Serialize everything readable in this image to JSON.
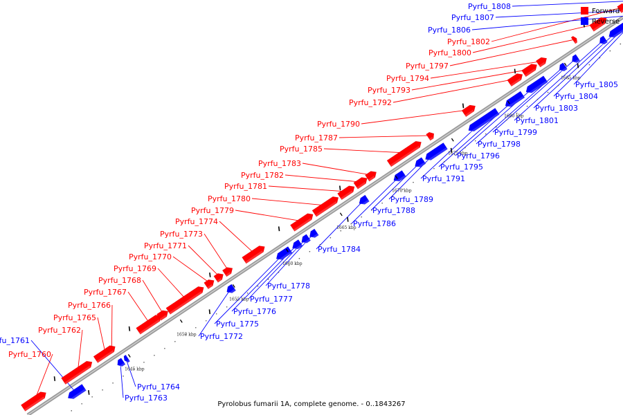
{
  "caption": "Pyrolobus fumarii 1A, complete genome. - 0..1843267",
  "legend": [
    {
      "label": "Forward",
      "color": "#ff0000"
    },
    {
      "label": "Reverse",
      "color": "#0000ff"
    }
  ],
  "colors": {
    "forward": "#ff0000",
    "reverse": "#0000ff",
    "axis": "#999999"
  },
  "ticks": [
    "1645 kbp",
    "1650 kbp",
    "1655 kbp",
    "1660 kbp",
    "1665 kbp",
    "1670 kbp",
    "1675 kbp",
    "1680 kbp",
    "1685 kbp"
  ],
  "forward_genes": [
    "Pyrfu_1760",
    "Pyrfu_1762",
    "Pyrfu_1765",
    "Pyrfu_1766",
    "Pyrfu_1767",
    "Pyrfu_1768",
    "Pyrfu_1769",
    "Pyrfu_1770",
    "Pyrfu_1771",
    "Pyrfu_1773",
    "Pyrfu_1774",
    "Pyrfu_1779",
    "Pyrfu_1780",
    "Pyrfu_1781",
    "Pyrfu_1782",
    "Pyrfu_1783",
    "Pyrfu_1785",
    "Pyrfu_1787",
    "Pyrfu_1790",
    "Pyrfu_1792",
    "Pyrfu_1793",
    "Pyrfu_1794",
    "Pyrfu_1797",
    "Pyrfu_1800",
    "Pyrfu_1802"
  ],
  "reverse_genes": [
    "Pyrfu_1761",
    "Pyrfu_1763",
    "Pyrfu_1764",
    "Pyrfu_1772",
    "Pyrfu_1775",
    "Pyrfu_1776",
    "Pyrfu_1777",
    "Pyrfu_1778",
    "Pyrfu_1784",
    "Pyrfu_1786",
    "Pyrfu_1788",
    "Pyrfu_1789",
    "Pyrfu_1791",
    "Pyrfu_1795",
    "Pyrfu_1796",
    "Pyrfu_1798",
    "Pyrfu_1799",
    "Pyrfu_1801",
    "Pyrfu_1803",
    "Pyrfu_1804",
    "Pyrfu_1805",
    "Pyrfu_1806",
    "Pyrfu_1807",
    "Pyrfu_1808"
  ]
}
